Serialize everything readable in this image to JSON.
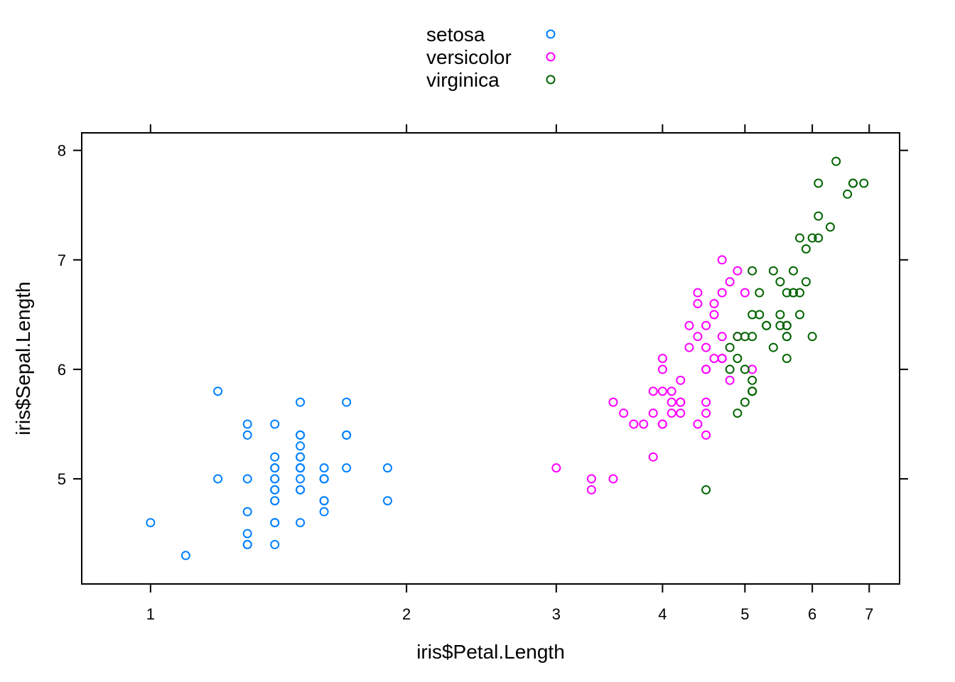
{
  "chart_data": {
    "type": "scatter",
    "xlabel": "iris$Petal.Length",
    "ylabel": "iris$Sepal.Length",
    "x_scale": "log",
    "xlim": [
      0.83,
      7.6
    ],
    "ylim": [
      4.04,
      8.16
    ],
    "x_ticks": [
      "1",
      "2",
      "3",
      "4",
      "5",
      "6",
      "7"
    ],
    "y_ticks": [
      "5",
      "6",
      "7",
      "8"
    ],
    "grid": false,
    "legend_position": "top-center",
    "series": [
      {
        "name": "setosa",
        "color": "#0080ff",
        "points": [
          [
            1.4,
            5.1
          ],
          [
            1.4,
            4.9
          ],
          [
            1.3,
            4.7
          ],
          [
            1.5,
            4.6
          ],
          [
            1.4,
            5.0
          ],
          [
            1.7,
            5.4
          ],
          [
            1.4,
            4.6
          ],
          [
            1.5,
            5.0
          ],
          [
            1.4,
            4.4
          ],
          [
            1.5,
            4.9
          ],
          [
            1.5,
            5.4
          ],
          [
            1.6,
            4.8
          ],
          [
            1.4,
            4.8
          ],
          [
            1.1,
            4.3
          ],
          [
            1.2,
            5.8
          ],
          [
            1.5,
            5.7
          ],
          [
            1.3,
            5.4
          ],
          [
            1.4,
            5.1
          ],
          [
            1.7,
            5.7
          ],
          [
            1.5,
            5.1
          ],
          [
            1.7,
            5.4
          ],
          [
            1.5,
            5.1
          ],
          [
            1.0,
            4.6
          ],
          [
            1.7,
            5.1
          ],
          [
            1.9,
            4.8
          ],
          [
            1.6,
            5.0
          ],
          [
            1.6,
            5.0
          ],
          [
            1.5,
            5.2
          ],
          [
            1.4,
            5.2
          ],
          [
            1.6,
            4.7
          ],
          [
            1.6,
            4.8
          ],
          [
            1.5,
            5.4
          ],
          [
            1.5,
            5.2
          ],
          [
            1.4,
            5.5
          ],
          [
            1.5,
            4.9
          ],
          [
            1.2,
            5.0
          ],
          [
            1.3,
            5.5
          ],
          [
            1.4,
            4.9
          ],
          [
            1.3,
            4.4
          ],
          [
            1.5,
            5.1
          ],
          [
            1.3,
            5.0
          ],
          [
            1.3,
            4.5
          ],
          [
            1.3,
            4.4
          ],
          [
            1.6,
            5.0
          ],
          [
            1.9,
            5.1
          ],
          [
            1.4,
            4.8
          ],
          [
            1.6,
            5.1
          ],
          [
            1.4,
            4.6
          ],
          [
            1.5,
            5.3
          ],
          [
            1.4,
            5.0
          ]
        ]
      },
      {
        "name": "versicolor",
        "color": "#ff00ff",
        "points": [
          [
            4.7,
            7.0
          ],
          [
            4.5,
            6.4
          ],
          [
            4.9,
            6.9
          ],
          [
            4.0,
            5.5
          ],
          [
            4.6,
            6.5
          ],
          [
            4.5,
            5.7
          ],
          [
            4.7,
            6.3
          ],
          [
            3.3,
            4.9
          ],
          [
            4.6,
            6.6
          ],
          [
            3.9,
            5.2
          ],
          [
            3.5,
            5.0
          ],
          [
            4.2,
            5.9
          ],
          [
            4.0,
            6.0
          ],
          [
            4.7,
            6.1
          ],
          [
            3.6,
            5.6
          ],
          [
            4.4,
            6.7
          ],
          [
            4.5,
            5.6
          ],
          [
            4.1,
            5.8
          ],
          [
            4.5,
            6.2
          ],
          [
            3.9,
            5.6
          ],
          [
            4.8,
            5.9
          ],
          [
            4.0,
            6.1
          ],
          [
            4.9,
            6.3
          ],
          [
            4.7,
            6.1
          ],
          [
            4.3,
            6.4
          ],
          [
            4.4,
            6.6
          ],
          [
            4.8,
            6.8
          ],
          [
            5.0,
            6.7
          ],
          [
            4.5,
            6.0
          ],
          [
            3.5,
            5.7
          ],
          [
            3.8,
            5.5
          ],
          [
            3.7,
            5.5
          ],
          [
            3.9,
            5.8
          ],
          [
            5.1,
            6.0
          ],
          [
            4.5,
            5.4
          ],
          [
            4.5,
            6.0
          ],
          [
            4.7,
            6.7
          ],
          [
            4.4,
            6.3
          ],
          [
            4.1,
            5.6
          ],
          [
            4.0,
            5.5
          ],
          [
            4.4,
            5.5
          ],
          [
            4.6,
            6.1
          ],
          [
            4.0,
            5.8
          ],
          [
            3.3,
            5.0
          ],
          [
            4.2,
            5.6
          ],
          [
            4.2,
            5.7
          ],
          [
            4.2,
            5.7
          ],
          [
            4.3,
            6.2
          ],
          [
            3.0,
            5.1
          ],
          [
            4.1,
            5.7
          ]
        ]
      },
      {
        "name": "virginica",
        "color": "#006400",
        "points": [
          [
            6.0,
            6.3
          ],
          [
            5.1,
            5.8
          ],
          [
            5.9,
            7.1
          ],
          [
            5.6,
            6.3
          ],
          [
            5.8,
            6.5
          ],
          [
            6.6,
            7.6
          ],
          [
            4.5,
            4.9
          ],
          [
            6.3,
            7.3
          ],
          [
            5.8,
            6.7
          ],
          [
            6.1,
            7.2
          ],
          [
            5.1,
            6.5
          ],
          [
            5.3,
            6.4
          ],
          [
            5.5,
            6.8
          ],
          [
            5.0,
            5.7
          ],
          [
            5.1,
            5.8
          ],
          [
            5.3,
            6.4
          ],
          [
            5.5,
            6.5
          ],
          [
            6.7,
            7.7
          ],
          [
            6.9,
            7.7
          ],
          [
            5.0,
            6.0
          ],
          [
            5.7,
            6.9
          ],
          [
            4.9,
            5.6
          ],
          [
            6.7,
            7.7
          ],
          [
            4.9,
            6.3
          ],
          [
            5.7,
            6.7
          ],
          [
            6.0,
            7.2
          ],
          [
            4.8,
            6.2
          ],
          [
            4.9,
            6.1
          ],
          [
            5.6,
            6.4
          ],
          [
            5.8,
            7.2
          ],
          [
            6.1,
            7.4
          ],
          [
            6.4,
            7.9
          ],
          [
            5.6,
            6.4
          ],
          [
            5.1,
            6.3
          ],
          [
            5.6,
            6.1
          ],
          [
            6.1,
            7.7
          ],
          [
            5.6,
            6.3
          ],
          [
            5.5,
            6.4
          ],
          [
            4.8,
            6.0
          ],
          [
            5.4,
            6.9
          ],
          [
            5.6,
            6.7
          ],
          [
            5.1,
            6.9
          ],
          [
            5.1,
            5.8
          ],
          [
            5.9,
            6.8
          ],
          [
            5.7,
            6.7
          ],
          [
            5.2,
            6.7
          ],
          [
            5.0,
            6.3
          ],
          [
            5.2,
            6.5
          ],
          [
            5.4,
            6.2
          ],
          [
            5.1,
            5.9
          ]
        ]
      }
    ]
  }
}
